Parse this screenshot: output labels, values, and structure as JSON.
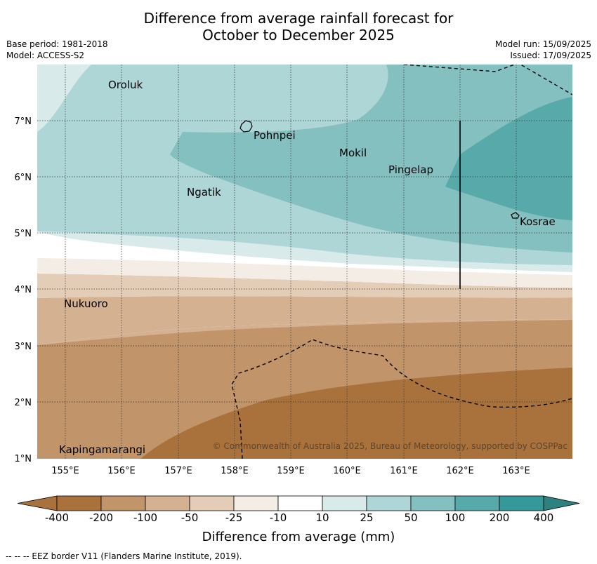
{
  "title_line1": "Difference from average rainfall forecast for",
  "title_line2": "October to December 2025",
  "base_period": "Base period: 1981-2018",
  "model": "Model: ACCESS-S2",
  "model_run": "Model run: 15/09/2025",
  "issued": "Issued: 17/09/2025",
  "copyright": "© Commonwealth of Australia 2025, Bureau of Meteorology, supported by COSPPac",
  "colorbar": {
    "title": "Difference from average (mm)",
    "ticks": [
      "-400",
      "-200",
      "-100",
      "-50",
      "-25",
      "-10",
      "10",
      "25",
      "50",
      "100",
      "200",
      "400"
    ],
    "colors": [
      "#a9723c",
      "#c1946a",
      "#d4b190",
      "#e4cdb7",
      "#f3ede6",
      "#ffffff",
      "#d8eaea",
      "#aed6d6",
      "#85c0c0",
      "#58aaaa",
      "#35999a",
      "#2f8180"
    ]
  },
  "footnote": "--  --  -- EEZ border V11 (Flanders Marine Institute, 2019).",
  "map": {
    "lon_ticks": [
      "155°E",
      "156°E",
      "157°E",
      "158°E",
      "159°E",
      "160°E",
      "161°E",
      "162°E",
      "163°E"
    ],
    "lat_ticks": [
      "7°N",
      "6°N",
      "5°N",
      "4°N",
      "3°N",
      "2°N",
      "1°N"
    ],
    "places": [
      "Oroluk",
      "Pohnpei",
      "Mokil",
      "Pingelap",
      "Ngatik",
      "Kosrae",
      "Nukuoro",
      "Kapingamarangi"
    ]
  }
}
